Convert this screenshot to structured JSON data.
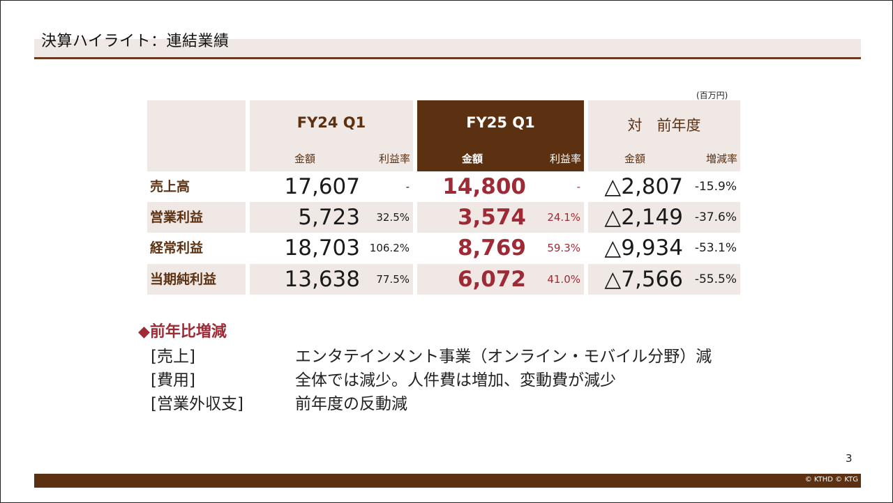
{
  "slide": {
    "title": "決算ハイライト：連結業績",
    "unit": "(百万円)",
    "page_number": "3",
    "copyright": "© KTHD © KTG"
  },
  "table": {
    "columns": {
      "fy24": {
        "title": "FY24 Q1",
        "amount": "金額",
        "rate": "利益率"
      },
      "fy25": {
        "title": "FY25 Q1",
        "amount": "金額",
        "rate": "利益率"
      },
      "yoy": {
        "title": "対　前年度",
        "amount": "金額",
        "rate": "増減率"
      }
    },
    "rows": [
      {
        "label": "売上高",
        "fy24_amount": "17,607",
        "fy24_rate": "-",
        "fy25_amount": "14,800",
        "fy25_rate": "-",
        "yoy_amount": "△2,807",
        "yoy_rate": "-15.9%"
      },
      {
        "label": "営業利益",
        "fy24_amount": "5,723",
        "fy24_rate": "32.5%",
        "fy25_amount": "3,574",
        "fy25_rate": "24.1%",
        "yoy_amount": "△2,149",
        "yoy_rate": "-37.6%"
      },
      {
        "label": "経常利益",
        "fy24_amount": "18,703",
        "fy24_rate": "106.2%",
        "fy25_amount": "8,769",
        "fy25_rate": "59.3%",
        "yoy_amount": "△9,934",
        "yoy_rate": "-53.1%"
      },
      {
        "label": "当期純利益",
        "fy24_amount": "13,638",
        "fy24_rate": "77.5%",
        "fy25_amount": "6,072",
        "fy25_rate": "41.0%",
        "yoy_amount": "△7,566",
        "yoy_rate": "-55.5%"
      }
    ]
  },
  "notes": {
    "heading": "◆前年比増減",
    "items": [
      {
        "label": "[売上]",
        "text": "エンタテインメント事業（オンライン・モバイル分野）減"
      },
      {
        "label": "[費用]",
        "text": "全体では減少。人件費は増加、変動費が減少"
      },
      {
        "label": "[営業外収支]",
        "text": "前年度の反動減"
      }
    ]
  },
  "colors": {
    "accent_brown": "#5c3112",
    "beige": "#efe8e5",
    "highlight_red": "#9e2a35"
  }
}
